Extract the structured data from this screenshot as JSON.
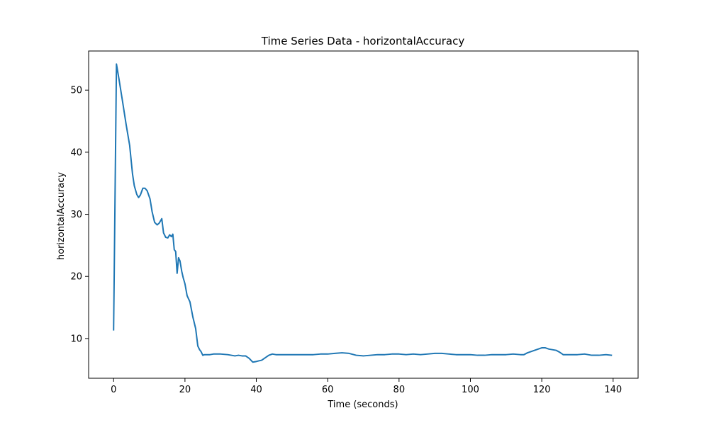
{
  "chart_data": {
    "type": "line",
    "title": "Time Series Data - horizontalAccuracy",
    "xlabel": "Time (seconds)",
    "ylabel": "horizontalAccuracy",
    "xlim": [
      -7,
      147
    ],
    "ylim": [
      3.6,
      56.3
    ],
    "xticks": [
      0,
      20,
      40,
      60,
      80,
      100,
      120,
      140
    ],
    "yticks": [
      10,
      20,
      30,
      40,
      50
    ],
    "grid": false,
    "legend": "none",
    "color": "#1f77b4",
    "series": [
      {
        "x": [
          0,
          0.3,
          0.8,
          1.5,
          2.5,
          3.5,
          4.5,
          5.3,
          5.8,
          6.5,
          7,
          7.5,
          8.2,
          8.8,
          9.4,
          10.2,
          10.8,
          11.5,
          12.2,
          12.8,
          13.5,
          14,
          14.6,
          15.2,
          15.7,
          16.2,
          16.6,
          17,
          17.4,
          17.8,
          18.2,
          18.6,
          19.1,
          19.5,
          20,
          20.6,
          21.4,
          22.2,
          23,
          23.6,
          24.1,
          24.5,
          25,
          25.5,
          26,
          27,
          28,
          30,
          32,
          34,
          35,
          36,
          37,
          38,
          39,
          40,
          40.7,
          41.5,
          42.5,
          43.5,
          44.5,
          45.5,
          47,
          50,
          53,
          56,
          58,
          60,
          62,
          64,
          66,
          68,
          70,
          72,
          74,
          76,
          78,
          80,
          82,
          84,
          86,
          88,
          90,
          92,
          94,
          96,
          98,
          100,
          102,
          104,
          106,
          108,
          110,
          112,
          114,
          115,
          116,
          118,
          120,
          121,
          122,
          124,
          125,
          126,
          128,
          130,
          132,
          134,
          136,
          138,
          139.5
        ],
        "y": [
          11.4,
          27.2,
          54.2,
          51.8,
          48.2,
          44.5,
          41.1,
          36.5,
          34.6,
          33.2,
          32.7,
          33.1,
          34.2,
          34.2,
          33.8,
          32.5,
          30.4,
          28.7,
          28.3,
          28.6,
          29.3,
          27,
          26.3,
          26.2,
          26.7,
          26.4,
          26.8,
          24.3,
          24,
          20.5,
          23,
          22.5,
          20.8,
          19.8,
          18.8,
          16.9,
          15.9,
          13.5,
          11.6,
          8.8,
          8.2,
          7.9,
          7.3,
          7.4,
          7.4,
          7.4,
          7.5,
          7.5,
          7.4,
          7.2,
          7.3,
          7.2,
          7.2,
          6.8,
          6.2,
          6.3,
          6.4,
          6.5,
          6.9,
          7.3,
          7.5,
          7.4,
          7.4,
          7.4,
          7.4,
          7.4,
          7.5,
          7.5,
          7.6,
          7.7,
          7.6,
          7.3,
          7.2,
          7.3,
          7.4,
          7.4,
          7.5,
          7.5,
          7.4,
          7.5,
          7.4,
          7.5,
          7.6,
          7.6,
          7.5,
          7.4,
          7.4,
          7.4,
          7.3,
          7.3,
          7.4,
          7.4,
          7.4,
          7.5,
          7.4,
          7.4,
          7.7,
          8.1,
          8.5,
          8.5,
          8.3,
          8.1,
          7.8,
          7.4,
          7.4,
          7.4,
          7.5,
          7.3,
          7.3,
          7.4,
          7.3
        ]
      }
    ]
  }
}
